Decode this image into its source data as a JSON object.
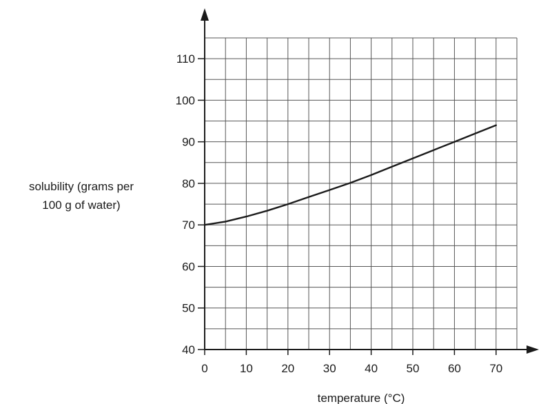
{
  "chart_data": {
    "type": "line",
    "title": "",
    "xlabel": "temperature (°C)",
    "ylabel_lines": [
      "solubility (grams per",
      "100 g of water)"
    ],
    "xlim": [
      0,
      75
    ],
    "ylim": [
      40,
      115
    ],
    "x_ticks": [
      0,
      10,
      20,
      30,
      40,
      50,
      60,
      70
    ],
    "y_ticks": [
      40,
      50,
      60,
      70,
      80,
      90,
      100,
      110
    ],
    "x_tick_labels": [
      "0",
      "10",
      "20",
      "30",
      "40",
      "50",
      "60",
      "70"
    ],
    "y_tick_labels": [
      "40",
      "50",
      "60",
      "70",
      "80",
      "90",
      "100",
      "110"
    ],
    "grid": true,
    "grid_minor_step": {
      "x": 5,
      "y": 5
    },
    "series": [
      {
        "x": [
          0,
          5,
          10,
          15,
          20,
          25,
          30,
          35,
          40,
          45,
          50,
          55,
          60,
          65,
          70
        ],
        "y": [
          70,
          70.8,
          72,
          73.4,
          75,
          76.7,
          78.4,
          80.1,
          82,
          84,
          86,
          88,
          90,
          92,
          94
        ]
      }
    ],
    "colors": {
      "line": "#1a1a1a",
      "grid": "#555555",
      "axis": "#1a1a1a"
    }
  }
}
